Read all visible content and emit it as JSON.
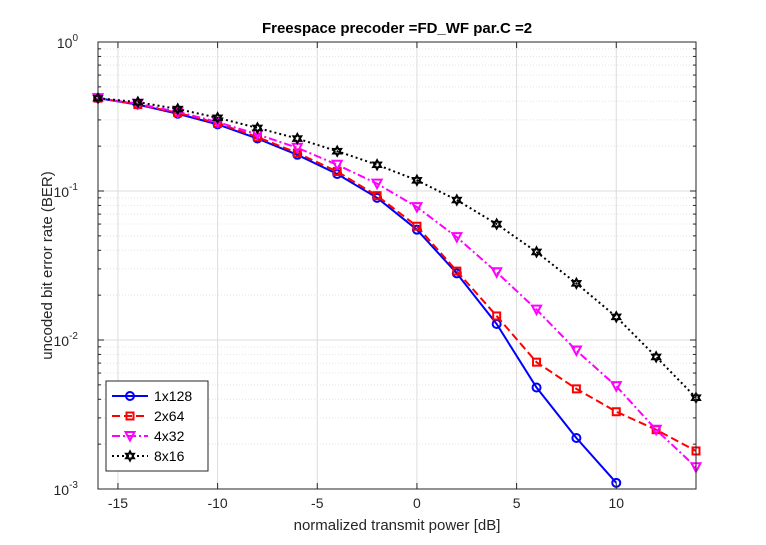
{
  "chart_data": {
    "type": "line",
    "title": "Freespace precoder =FD_WF par.C =2",
    "xlabel": "normalized transmit power [dB]",
    "ylabel": "uncoded bit error rate (BER)",
    "xlim": [
      -16,
      14
    ],
    "ylim": [
      0.001,
      1
    ],
    "yscale": "log",
    "grid": true,
    "minor_grid": true,
    "legend_position": "bottom-left",
    "x_ticks": [
      -15,
      -10,
      -5,
      0,
      5,
      10
    ],
    "x_tick_labels": [
      "-15",
      "-10",
      "-5",
      "0",
      "5",
      "10"
    ],
    "y_ticks": [
      {
        "value": 1,
        "base": "10",
        "exp": "0"
      },
      {
        "value": 0.1,
        "base": "10",
        "exp": "-1"
      },
      {
        "value": 0.01,
        "base": "10",
        "exp": "-2"
      },
      {
        "value": 0.001,
        "base": "10",
        "exp": "-3"
      }
    ],
    "series": [
      {
        "name": "1x128",
        "color": "#0000ff",
        "line_style": "solid",
        "marker": "circle",
        "x": [
          -16,
          -14,
          -12,
          -10,
          -8,
          -6,
          -4,
          -2,
          0,
          2,
          4,
          6,
          8,
          10
        ],
        "y": [
          0.42,
          0.38,
          0.33,
          0.28,
          0.225,
          0.175,
          0.13,
          0.09,
          0.055,
          0.028,
          0.0128,
          0.0048,
          0.0022,
          0.0011
        ]
      },
      {
        "name": "2x64",
        "color": "#ff0000",
        "line_style": "dashed",
        "marker": "square",
        "x": [
          -16,
          -14,
          -12,
          -10,
          -8,
          -6,
          -4,
          -2,
          0,
          2,
          4,
          6,
          8,
          10,
          12,
          14
        ],
        "y": [
          0.42,
          0.38,
          0.335,
          0.285,
          0.23,
          0.18,
          0.135,
          0.093,
          0.058,
          0.029,
          0.0145,
          0.0071,
          0.0047,
          0.0033,
          0.0025,
          0.0018
        ]
      },
      {
        "name": "4x32",
        "color": "#ff00ff",
        "line_style": "dashdot",
        "marker": "triangle-down",
        "x": [
          -16,
          -14,
          -12,
          -10,
          -8,
          -6,
          -4,
          -2,
          0,
          2,
          4,
          6,
          8,
          10,
          12,
          14
        ],
        "y": [
          0.42,
          0.385,
          0.34,
          0.29,
          0.24,
          0.195,
          0.15,
          0.112,
          0.078,
          0.049,
          0.0285,
          0.016,
          0.0085,
          0.0049,
          0.0025,
          0.0014
        ]
      },
      {
        "name": "8x16",
        "color": "#000000",
        "line_style": "dotted",
        "marker": "hexagram",
        "x": [
          -16,
          -14,
          -12,
          -10,
          -8,
          -6,
          -4,
          -2,
          0,
          2,
          4,
          6,
          8,
          10,
          12,
          14
        ],
        "y": [
          0.42,
          0.395,
          0.355,
          0.31,
          0.265,
          0.225,
          0.185,
          0.15,
          0.118,
          0.087,
          0.06,
          0.039,
          0.024,
          0.0143,
          0.0077,
          0.0041
        ]
      }
    ]
  }
}
